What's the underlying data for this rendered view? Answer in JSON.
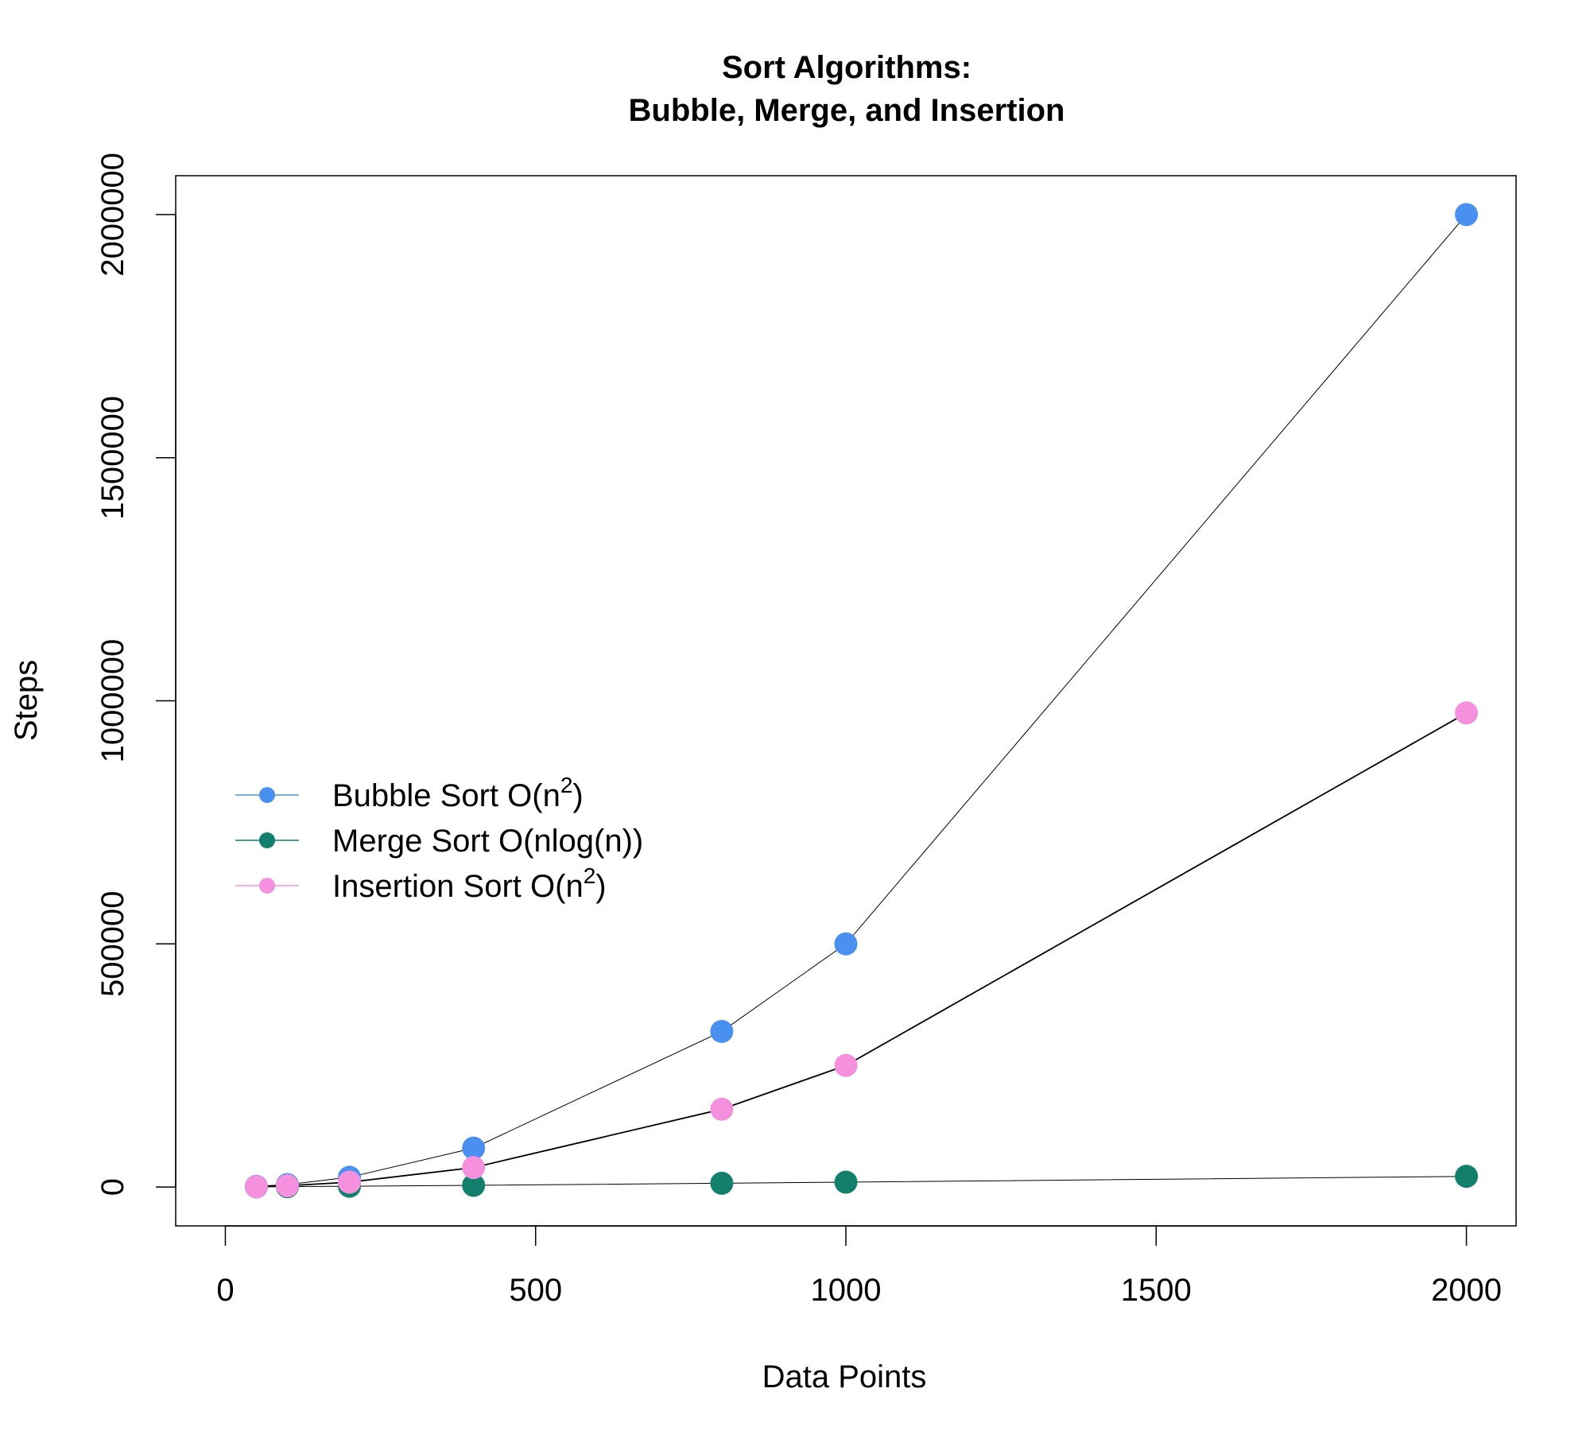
{
  "chart_data": {
    "type": "line",
    "title": [
      "Sort Algorithms:",
      "Bubble, Merge, and Insertion"
    ],
    "xlabel": "Data Points",
    "ylabel": "Steps",
    "xlim": [
      -80,
      2080
    ],
    "ylim": [
      -80000,
      2080000
    ],
    "xticks": [
      0,
      500,
      1000,
      1500,
      2000
    ],
    "yticks": [
      0,
      500000,
      1000000,
      1500000,
      2000000
    ],
    "grid": false,
    "legend_placement": "center-left",
    "x": [
      50,
      100,
      200,
      400,
      800,
      1000,
      2000
    ],
    "series": [
      {
        "name": "Bubble Sort O(n2)",
        "label_main": "Bubble Sort O(n",
        "label_sup": "2",
        "label_end": ")",
        "color": "#4a90f0",
        "values": [
          1250,
          5000,
          20000,
          80000,
          320000,
          500000,
          2000000
        ]
      },
      {
        "name": "Merge Sort O(nlog(n))",
        "label_main": "Merge Sort O(nlog(n))",
        "label_sup": "",
        "label_end": "",
        "color": "#12806c",
        "values": [
          282,
          664,
          1529,
          3458,
          7715,
          9966,
          21932
        ]
      },
      {
        "name": "Insertion Sort O(n2)",
        "label_main": "Insertion Sort O(n",
        "label_sup": "2",
        "label_end": ")",
        "color": "#f590de",
        "values": [
          625,
          2500,
          10000,
          40000,
          160000,
          250000,
          975000
        ]
      }
    ]
  }
}
